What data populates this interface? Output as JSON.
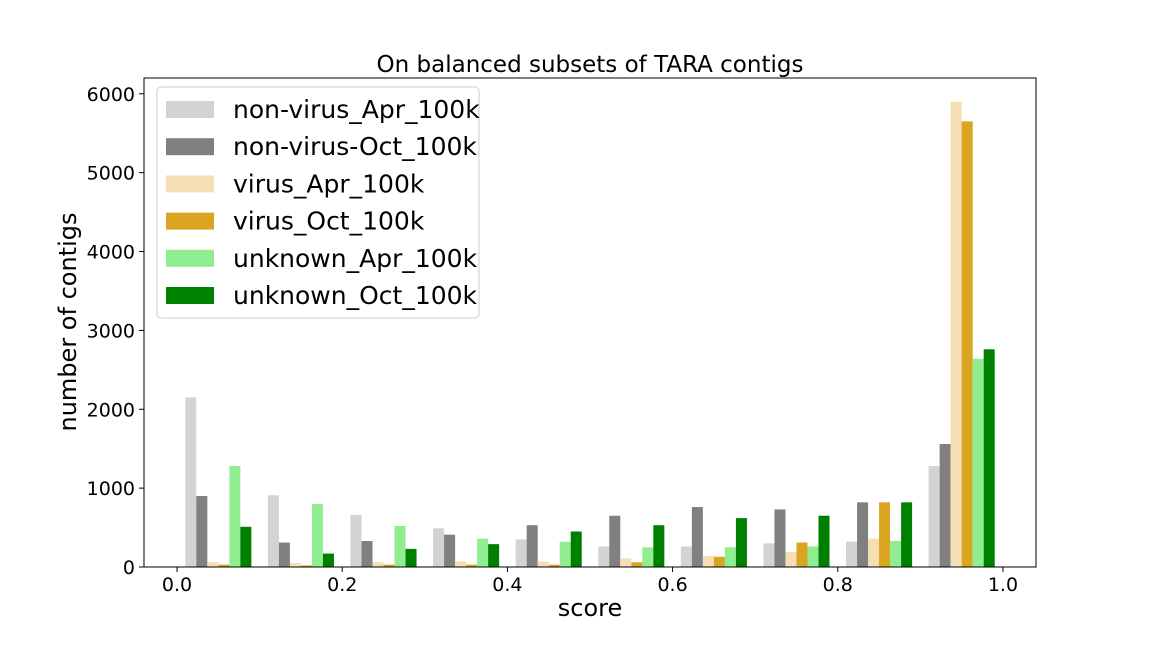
{
  "chart_data": {
    "type": "bar",
    "title": "On balanced subsets of TARA contigs",
    "xlabel": "score",
    "ylabel": "number of contigs",
    "xlim": [
      -0.04,
      1.04
    ],
    "ylim": [
      0,
      6200
    ],
    "xticks": [
      "0.0",
      "0.2",
      "0.4",
      "0.6",
      "0.8",
      "1.0"
    ],
    "yticks": [
      "0",
      "1000",
      "2000",
      "3000",
      "4000",
      "5000",
      "6000"
    ],
    "grid": false,
    "legend_position": "top-left",
    "bins": [
      [
        0.0,
        0.1
      ],
      [
        0.1,
        0.2
      ],
      [
        0.2,
        0.3
      ],
      [
        0.3,
        0.4
      ],
      [
        0.4,
        0.5
      ],
      [
        0.5,
        0.6
      ],
      [
        0.6,
        0.7
      ],
      [
        0.7,
        0.8
      ],
      [
        0.8,
        0.9
      ],
      [
        0.9,
        1.0
      ]
    ],
    "series": [
      {
        "name": "non-virus_Apr_100k",
        "color": "#d3d3d3",
        "values": [
          2150,
          910,
          660,
          490,
          350,
          260,
          260,
          300,
          320,
          1280
        ]
      },
      {
        "name": "non-virus-Oct_100k",
        "color": "#808080",
        "values": [
          900,
          310,
          330,
          410,
          530,
          650,
          760,
          730,
          820,
          1560
        ]
      },
      {
        "name": "virus_Apr_100k",
        "color": "#f5deb3",
        "values": [
          60,
          50,
          60,
          70,
          70,
          110,
          140,
          190,
          360,
          5900
        ]
      },
      {
        "name": "virus_Oct_100k",
        "color": "#daa520",
        "values": [
          30,
          20,
          30,
          30,
          30,
          60,
          130,
          310,
          820,
          5650
        ]
      },
      {
        "name": "unknown_Apr_100k",
        "color": "#90ee90",
        "values": [
          1280,
          800,
          520,
          360,
          320,
          250,
          250,
          260,
          330,
          2640
        ]
      },
      {
        "name": "unknown_Oct_100k",
        "color": "#008000",
        "values": [
          510,
          170,
          230,
          290,
          450,
          530,
          620,
          650,
          820,
          2760
        ]
      }
    ]
  }
}
